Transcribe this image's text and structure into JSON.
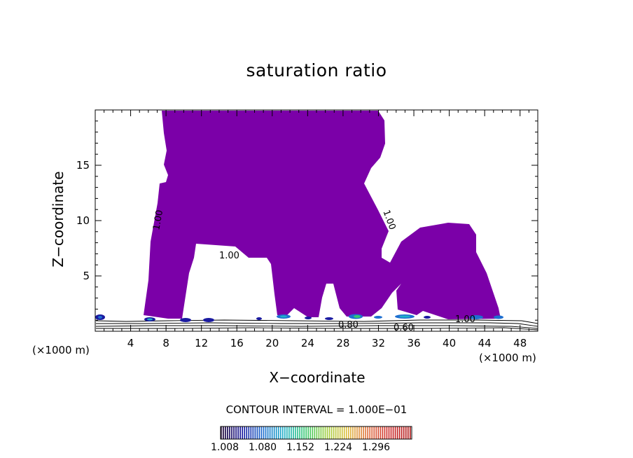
{
  "chart_data": {
    "type": "contour",
    "title": "saturation ratio",
    "xlabel": "X−coordinate",
    "ylabel": "Z−coordinate",
    "x_unit": "(×1000 m)",
    "y_unit": "(×1000 m)",
    "xlim": [
      0,
      50
    ],
    "ylim": [
      0,
      20
    ],
    "x_ticks": [
      4,
      8,
      12,
      16,
      20,
      24,
      28,
      32,
      36,
      40,
      44,
      48
    ],
    "y_ticks": [
      5,
      10,
      15
    ],
    "fill_color": "#7b00a8",
    "contour_labels": [
      "1.00",
      "1.00",
      "1.00",
      "1.00",
      "0.80",
      "0.60"
    ],
    "contour_interval": "CONTOUR INTERVAL = 1.000E−01",
    "colorbar": {
      "ticks": [
        "1.008",
        "1.080",
        "1.152",
        "1.224",
        "1.296"
      ],
      "range": [
        1.0,
        1.3
      ],
      "colors": [
        "#1a0030",
        "#1a1aa0",
        "#1e6fd0",
        "#20b0c8",
        "#35c870",
        "#a0d040",
        "#e0c040",
        "#e07040",
        "#d03030",
        "#b01818"
      ]
    }
  }
}
